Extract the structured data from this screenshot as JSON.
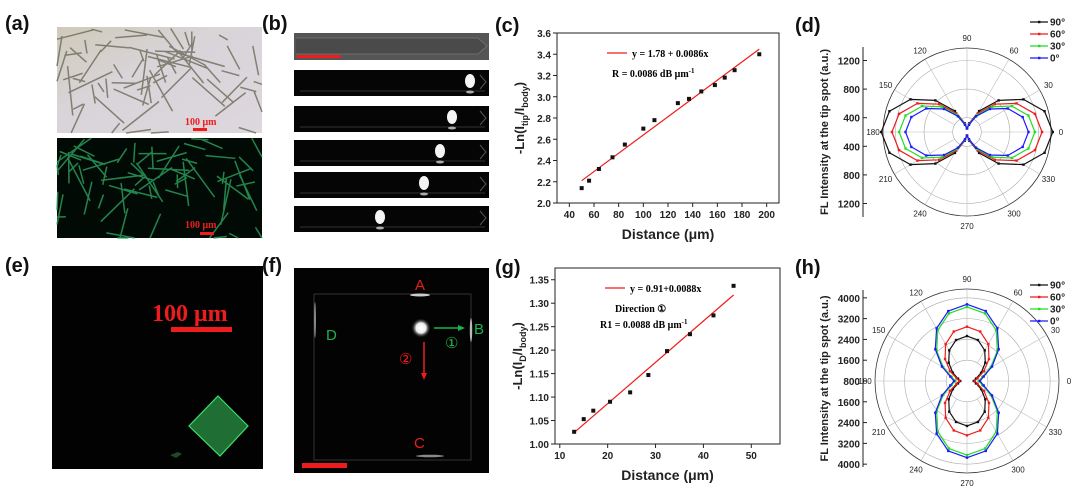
{
  "panel_labels": {
    "a": "(a)",
    "b": "(b)",
    "c": "(c)",
    "d": "(d)",
    "e": "(e)",
    "f": "(f)",
    "g": "(g)",
    "h": "(h)"
  },
  "images": {
    "a_scale_top": "100 μm",
    "a_scale_bottom": "100 μm",
    "e_scale": "100 μm",
    "f_labels": {
      "A": "A",
      "B": "B",
      "C": "C",
      "D": "D",
      "dir1": "①",
      "dir2": "②"
    }
  },
  "colors": {
    "red": "#ee1c1c",
    "green": "#1db34a",
    "blue": "#1a1aff",
    "black": "#111111",
    "fluor": "#2bd66a"
  },
  "chart_data": [
    {
      "id": "c",
      "type": "scatter",
      "xlabel": "Distance (μm)",
      "ylabel_parts": [
        "-Ln(I",
        "tip",
        "/I",
        "body",
        ")"
      ],
      "xlim": [
        30,
        210
      ],
      "ylim": [
        2.0,
        3.6
      ],
      "xticks": [
        40,
        60,
        80,
        100,
        120,
        140,
        160,
        180,
        200
      ],
      "yticks": [
        2.0,
        2.2,
        2.4,
        2.6,
        2.8,
        3.0,
        3.2,
        3.4,
        3.6
      ],
      "x": [
        50,
        56,
        64,
        75,
        85,
        100,
        109,
        128,
        137,
        147,
        158,
        166,
        174,
        194
      ],
      "y": [
        2.14,
        2.21,
        2.32,
        2.43,
        2.55,
        2.7,
        2.78,
        2.94,
        2.98,
        3.05,
        3.11,
        3.18,
        3.25,
        3.4
      ],
      "fit": {
        "intercept": 1.78,
        "slope": 0.0086,
        "range": [
          50,
          194
        ]
      },
      "legend": "y = 1.78 + 0.0086x",
      "annotation": "R = 0.0086 dB μm",
      "annotation_sup": "-1"
    },
    {
      "id": "g",
      "type": "scatter",
      "xlabel": "Distance (μm)",
      "ylabel_parts": [
        "-Ln(I",
        "D",
        "/I",
        "body",
        ")"
      ],
      "xlim": [
        9,
        56
      ],
      "ylim": [
        1.0,
        1.375
      ],
      "xticks": [
        10,
        20,
        30,
        40,
        50
      ],
      "yticks": [
        1.0,
        1.05,
        1.1,
        1.15,
        1.2,
        1.25,
        1.3,
        1.35
      ],
      "x": [
        13,
        15,
        17,
        20.5,
        24.7,
        28.5,
        32.4,
        37.2,
        42.1,
        46.3
      ],
      "y": [
        1.026,
        1.053,
        1.071,
        1.09,
        1.11,
        1.147,
        1.198,
        1.234,
        1.274,
        1.337
      ],
      "fit": {
        "intercept": 0.91,
        "slope": 0.0088,
        "range": [
          13,
          46.3
        ]
      },
      "legend": "y = 0.91+0.0088x",
      "annotation_title": "Direction ①",
      "annotation": "R1 = 0.0088 dB μm",
      "annotation_sup": "-1"
    },
    {
      "id": "d",
      "type": "polar",
      "ylabel": "FL Intensity at the tip spot (a.u.)",
      "rlim": [
        200,
        1375
      ],
      "rticks": [
        400,
        800,
        1200
      ],
      "angle_ticks": [
        0,
        30,
        60,
        90,
        120,
        150,
        180,
        210,
        240,
        270,
        300,
        330
      ],
      "angles": [
        0,
        15,
        30,
        45,
        60,
        75,
        90,
        105,
        120,
        135,
        150,
        165
      ],
      "symmetric_period": 180,
      "series": [
        {
          "name": "90°",
          "color": "#111111",
          "values": [
            1400,
            1323,
            1113,
            825,
            538,
            327,
            250,
            327,
            538,
            825,
            1113,
            1323
          ]
        },
        {
          "name": "60°",
          "color": "#ee1c1c",
          "values": [
            1250,
            1183,
            1000,
            750,
            500,
            317,
            250,
            317,
            500,
            750,
            1000,
            1183
          ]
        },
        {
          "name": "30°",
          "color": "#22dd22",
          "values": [
            1150,
            1090,
            925,
            700,
            475,
            310,
            250,
            310,
            475,
            700,
            925,
            1090
          ]
        },
        {
          "name": "0°",
          "color": "#1a1aff",
          "values": [
            1060,
            1006,
            858,
            655,
            453,
            304,
            250,
            304,
            453,
            655,
            858,
            1006
          ]
        }
      ],
      "legend": "top-right"
    },
    {
      "id": "h",
      "type": "polar",
      "ylabel": "FL Intensity at the tip spot (a.u.)",
      "rlim": [
        800,
        4340
      ],
      "rticks": [
        1600,
        2400,
        3200,
        4000
      ],
      "axis_labels": [
        4000,
        3200,
        2400,
        1600,
        800,
        1600,
        2400,
        3200,
        4000
      ],
      "angle_ticks": [
        0,
        30,
        60,
        90,
        120,
        150,
        180,
        210,
        240,
        270,
        300,
        330
      ],
      "angles": [
        0,
        15,
        30,
        45,
        60,
        75,
        90,
        105,
        120,
        135,
        150,
        165
      ],
      "symmetric_period": 180,
      "series": [
        {
          "name": "90°",
          "color": "#111111",
          "values": [
            1060,
            1158,
            1428,
            1795,
            2163,
            2432,
            2530,
            2432,
            2163,
            1795,
            1428,
            1158
          ]
        },
        {
          "name": "60°",
          "color": "#ee1c1c",
          "values": [
            1100,
            1220,
            1548,
            1995,
            2443,
            2770,
            2890,
            2770,
            2443,
            1995,
            1548,
            1220
          ]
        },
        {
          "name": "30°",
          "color": "#22dd22",
          "values": [
            1250,
            1411,
            1850,
            2450,
            3050,
            3489,
            3650,
            3489,
            3050,
            2450,
            1850,
            1411
          ]
        },
        {
          "name": "0°",
          "color": "#1a1aff",
          "values": [
            1300,
            1464,
            1913,
            2525,
            3138,
            3586,
            3750,
            3586,
            3138,
            2525,
            1913,
            1464
          ]
        }
      ],
      "legend": "top-right"
    }
  ]
}
